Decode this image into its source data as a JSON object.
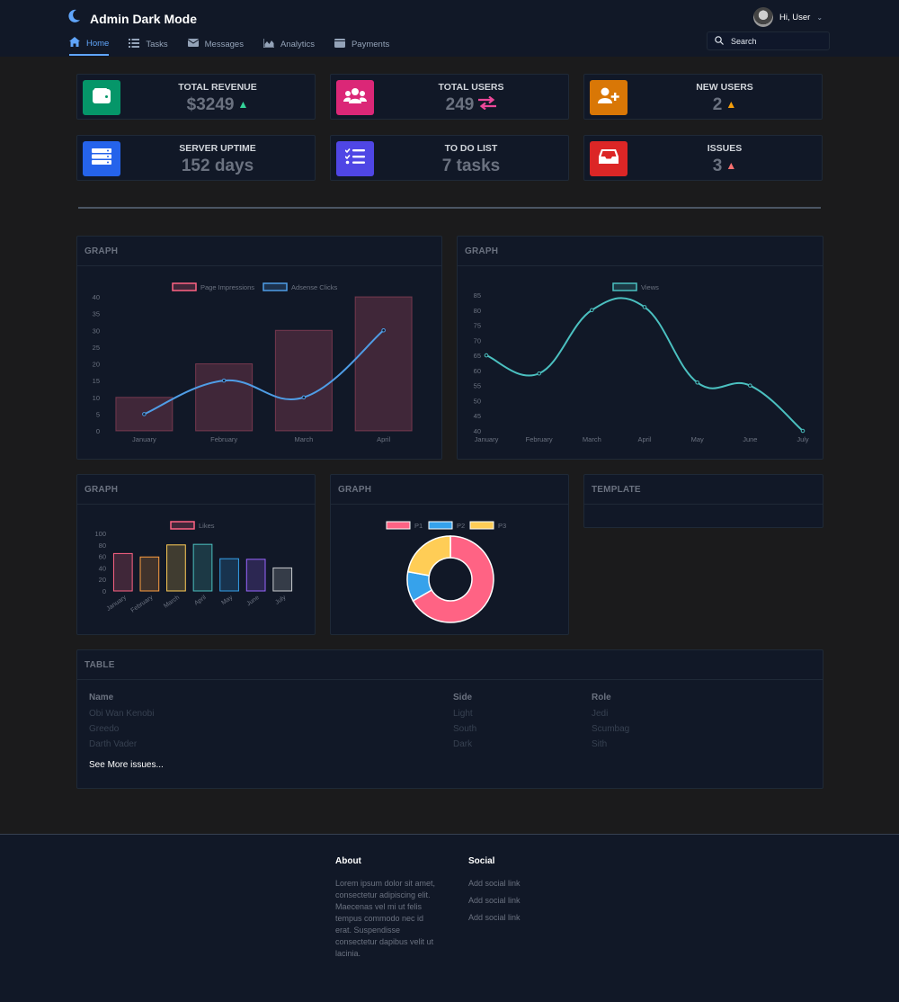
{
  "app": {
    "title": "Admin Dark Mode"
  },
  "nav": [
    {
      "label": "Home",
      "icon": "home-icon",
      "active": true
    },
    {
      "label": "Tasks",
      "icon": "tasks-icon",
      "active": false
    },
    {
      "label": "Messages",
      "icon": "envelope-icon",
      "active": false
    },
    {
      "label": "Analytics",
      "icon": "chart-area-icon",
      "active": false
    },
    {
      "label": "Payments",
      "icon": "wallet-icon",
      "active": false
    }
  ],
  "user": {
    "greeting": "Hi, User"
  },
  "search": {
    "placeholder": "Search"
  },
  "stats": [
    {
      "title": "TOTAL REVENUE",
      "value": "$3249",
      "icon": "wallet-icon",
      "color": "#059669",
      "trend": "up",
      "trend_color": "#34d399"
    },
    {
      "title": "TOTAL USERS",
      "value": "249",
      "icon": "users-icon",
      "color": "#db2777",
      "trend": "exchange",
      "trend_color": "#ec4899"
    },
    {
      "title": "NEW USERS",
      "value": "2",
      "icon": "user-plus-icon",
      "color": "#d97706",
      "trend": "up",
      "trend_color": "#f59e0b"
    },
    {
      "title": "SERVER UPTIME",
      "value": "152 days",
      "icon": "server-icon",
      "color": "#2563eb",
      "trend": "none"
    },
    {
      "title": "TO DO LIST",
      "value": "7 tasks",
      "icon": "checklist-icon",
      "color": "#4f46e5",
      "trend": "none"
    },
    {
      "title": "ISSUES",
      "value": "3",
      "icon": "inbox-icon",
      "color": "#dc2626",
      "trend": "up",
      "trend_color": "#f87171"
    }
  ],
  "panels": {
    "graph1": "GRAPH",
    "graph2": "GRAPH",
    "graph3": "GRAPH",
    "graph4": "GRAPH",
    "template": "TEMPLATE",
    "table": "TABLE"
  },
  "chart_data": [
    {
      "type": "bar",
      "categories": [
        "January",
        "February",
        "March",
        "April"
      ],
      "series": [
        {
          "name": "Page Impressions",
          "type": "bar",
          "values": [
            10,
            20,
            30,
            40
          ],
          "color": "#ff6384"
        },
        {
          "name": "Adsense Clicks",
          "type": "line",
          "values": [
            5,
            15,
            10,
            30
          ],
          "color": "#4f9de6"
        }
      ],
      "ylim": [
        0,
        40
      ],
      "yticks": [
        0,
        5,
        10,
        15,
        20,
        25,
        30,
        35,
        40
      ],
      "legend": "top"
    },
    {
      "type": "line",
      "categories": [
        "January",
        "February",
        "March",
        "April",
        "May",
        "June",
        "July"
      ],
      "series": [
        {
          "name": "Views",
          "values": [
            65,
            59,
            80,
            81,
            56,
            55,
            40
          ],
          "color": "#4bc0c0"
        }
      ],
      "ylim": [
        40,
        85
      ],
      "yticks": [
        40,
        45,
        50,
        55,
        60,
        65,
        70,
        75,
        80,
        85
      ],
      "legend": "top"
    },
    {
      "type": "bar",
      "categories": [
        "January",
        "February",
        "March",
        "April",
        "May",
        "June",
        "July"
      ],
      "series": [
        {
          "name": "Likes",
          "values": [
            65,
            59,
            80,
            81,
            56,
            55,
            40
          ]
        }
      ],
      "colors": [
        "#ff6384",
        "#ff9f40",
        "#ffcd56",
        "#4bc0c0",
        "#36a2eb",
        "#9966ff",
        "#c9cbcf"
      ],
      "ylim": [
        0,
        100
      ],
      "yticks": [
        0,
        20,
        40,
        60,
        80,
        100
      ],
      "legend": "top"
    },
    {
      "type": "pie",
      "labels": [
        "P1",
        "P2",
        "P3"
      ],
      "values": [
        300,
        50,
        100
      ],
      "colors": [
        "#ff6384",
        "#36a2eb",
        "#ffcd56"
      ],
      "legend": "top"
    }
  ],
  "table": {
    "headers": [
      "Name",
      "Side",
      "Role"
    ],
    "rows": [
      [
        "Obi Wan Kenobi",
        "Light",
        "Jedi"
      ],
      [
        "Greedo",
        "South",
        "Scumbag"
      ],
      [
        "Darth Vader",
        "Dark",
        "Sith"
      ]
    ],
    "see_more": "See More issues..."
  },
  "footer": {
    "about_title": "About",
    "about_text": "Lorem ipsum dolor sit amet, consectetur adipiscing elit. Maecenas vel mi ut felis tempus commodo nec id erat. Suspendisse consectetur dapibus velit ut lacinia.",
    "social_title": "Social",
    "social_links": [
      "Add social link",
      "Add social link",
      "Add social link"
    ]
  }
}
